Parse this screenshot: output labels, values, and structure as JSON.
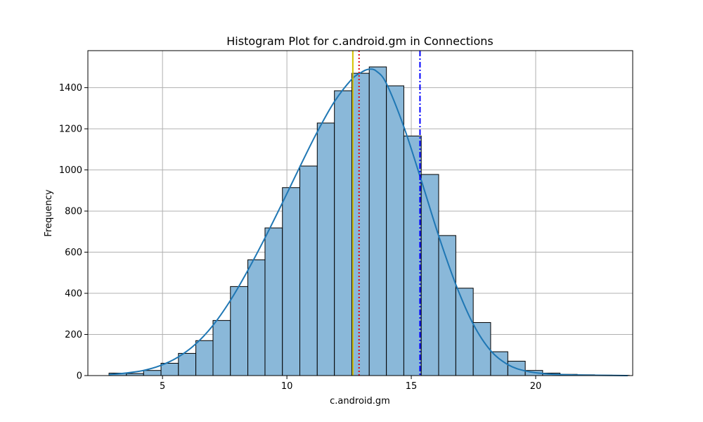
{
  "chart_data": {
    "type": "bar",
    "subtype": "histogram",
    "title": "Histogram Plot for c.android.gm in Connections",
    "xlabel": "c.android.gm",
    "ylabel": "Frequency",
    "xlim": [
      2.0,
      23.9
    ],
    "ylim": [
      0,
      1580
    ],
    "xticks": [
      5,
      10,
      15,
      20
    ],
    "yticks": [
      0,
      200,
      400,
      600,
      800,
      1000,
      1200,
      1400
    ],
    "grid": true,
    "legend": "none",
    "bins": {
      "edges": [
        2.85,
        3.55,
        4.24,
        4.94,
        5.64,
        6.34,
        7.03,
        7.73,
        8.43,
        9.12,
        9.82,
        10.52,
        11.22,
        11.91,
        12.61,
        13.31,
        14.0,
        14.7,
        15.4,
        16.1,
        16.79,
        17.49,
        18.19,
        18.88,
        19.58,
        20.28,
        20.98,
        21.67,
        22.37,
        23.07,
        23.76
      ],
      "counts": [
        12,
        10,
        25,
        60,
        108,
        170,
        268,
        433,
        563,
        718,
        914,
        1019,
        1228,
        1385,
        1470,
        1501,
        1409,
        1165,
        978,
        681,
        425,
        258,
        116,
        70,
        25,
        12,
        6,
        4,
        2,
        1
      ]
    },
    "kde": {
      "x": [
        2.85,
        3.5,
        4.2,
        4.9,
        5.6,
        6.3,
        7.0,
        7.7,
        8.4,
        9.1,
        9.8,
        10.5,
        11.2,
        11.9,
        12.6,
        13.0,
        13.3,
        13.6,
        14.0,
        14.7,
        15.4,
        16.1,
        16.8,
        17.5,
        18.2,
        18.9,
        19.6,
        20.3,
        21.0,
        22.0,
        23.0,
        23.7
      ],
      "y": [
        5,
        12,
        24,
        48,
        88,
        150,
        240,
        360,
        505,
        665,
        835,
        1010,
        1180,
        1330,
        1440,
        1475,
        1490,
        1480,
        1420,
        1210,
        950,
        680,
        440,
        248,
        120,
        52,
        22,
        10,
        5,
        2,
        1,
        0
      ]
    },
    "reference_lines": [
      {
        "x": 12.65,
        "color": "#d4c200",
        "style": "solid"
      },
      {
        "x": 12.9,
        "color": "#e8000b",
        "style": "dotted"
      },
      {
        "x": 15.35,
        "color": "#0000ff",
        "style": "dashdot"
      }
    ],
    "colors": {
      "bar_fill": "#8ab8d9",
      "bar_edge": "#000000",
      "kde_line": "#1f77b4",
      "grid": "#b0b0b0"
    }
  }
}
